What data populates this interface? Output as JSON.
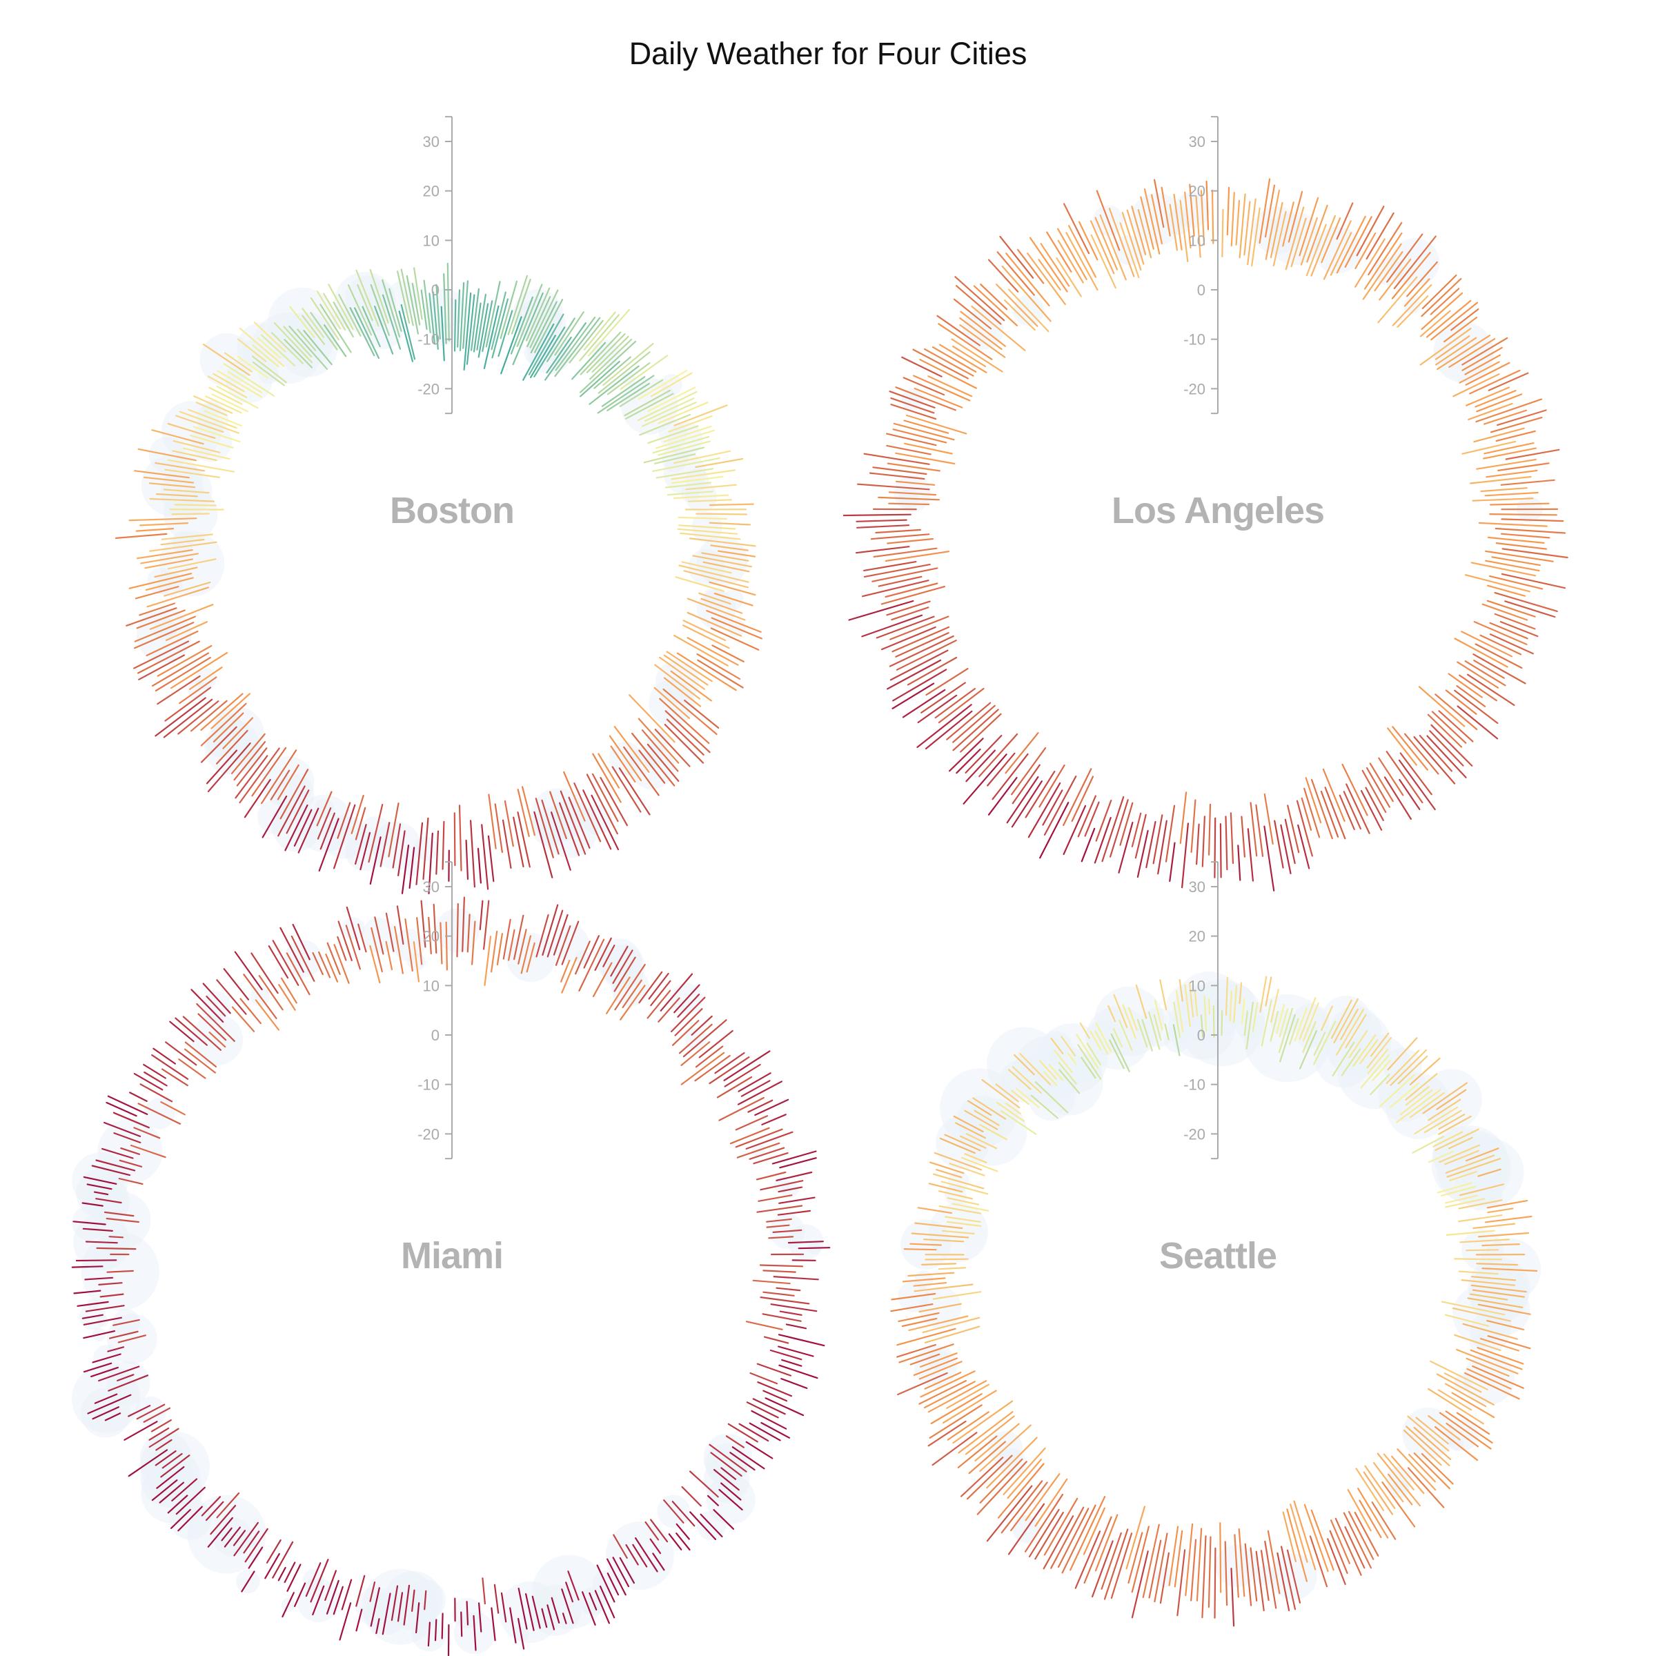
{
  "chart_data": {
    "type": "radial-bar",
    "title": "Daily Weather for Four Cities",
    "y_ticks": [
      30,
      20,
      10,
      0,
      -10,
      -20
    ],
    "y_range": [
      -25,
      35
    ],
    "colors": {
      "cold": "#3b4fa0",
      "cool": "#3aa8a0",
      "mild": "#f7f3a0",
      "warm": "#f79a4e",
      "hot": "#a0103e",
      "precip_bubble": "#dce8f5"
    },
    "cities": [
      {
        "name": "Boston",
        "monthly_temp_ranges": [
          {
            "month": 1,
            "min": -12,
            "max": 0
          },
          {
            "month": 2,
            "min": -10,
            "max": 2
          },
          {
            "month": 3,
            "min": -3,
            "max": 8
          },
          {
            "month": 4,
            "min": 4,
            "max": 14
          },
          {
            "month": 5,
            "min": 10,
            "max": 21
          },
          {
            "month": 6,
            "min": 15,
            "max": 26
          },
          {
            "month": 7,
            "min": 19,
            "max": 29
          },
          {
            "month": 8,
            "min": 18,
            "max": 28
          },
          {
            "month": 9,
            "min": 13,
            "max": 24
          },
          {
            "month": 10,
            "min": 7,
            "max": 17
          },
          {
            "month": 11,
            "min": 2,
            "max": 11
          },
          {
            "month": 12,
            "min": -5,
            "max": 4
          }
        ],
        "monthly_precip_level": [
          0.5,
          0.4,
          0.5,
          0.5,
          0.6,
          0.6,
          0.5,
          0.5,
          0.6,
          0.7,
          0.7,
          0.6
        ]
      },
      {
        "name": "Los Angeles",
        "monthly_temp_ranges": [
          {
            "month": 1,
            "min": 9,
            "max": 20
          },
          {
            "month": 2,
            "min": 10,
            "max": 21
          },
          {
            "month": 3,
            "min": 11,
            "max": 21
          },
          {
            "month": 4,
            "min": 12,
            "max": 23
          },
          {
            "month": 5,
            "min": 14,
            "max": 24
          },
          {
            "month": 6,
            "min": 16,
            "max": 26
          },
          {
            "month": 7,
            "min": 18,
            "max": 28
          },
          {
            "month": 8,
            "min": 19,
            "max": 29
          },
          {
            "month": 9,
            "min": 18,
            "max": 29
          },
          {
            "month": 10,
            "min": 15,
            "max": 26
          },
          {
            "month": 11,
            "min": 12,
            "max": 23
          },
          {
            "month": 12,
            "min": 9,
            "max": 20
          }
        ],
        "monthly_precip_level": [
          0.5,
          0.5,
          0.3,
          0.1,
          0.0,
          0.0,
          0.0,
          0.0,
          0.0,
          0.1,
          0.2,
          0.4
        ]
      },
      {
        "name": "Miami",
        "monthly_temp_ranges": [
          {
            "month": 1,
            "min": 16,
            "max": 24
          },
          {
            "month": 2,
            "min": 17,
            "max": 25
          },
          {
            "month": 3,
            "min": 19,
            "max": 27
          },
          {
            "month": 4,
            "min": 21,
            "max": 28
          },
          {
            "month": 5,
            "min": 23,
            "max": 30
          },
          {
            "month": 6,
            "min": 25,
            "max": 31
          },
          {
            "month": 7,
            "min": 26,
            "max": 32
          },
          {
            "month": 8,
            "min": 26,
            "max": 32
          },
          {
            "month": 9,
            "min": 25,
            "max": 31
          },
          {
            "month": 10,
            "min": 23,
            "max": 29
          },
          {
            "month": 11,
            "min": 20,
            "max": 27
          },
          {
            "month": 12,
            "min": 17,
            "max": 25
          }
        ],
        "monthly_precip_level": [
          0.3,
          0.3,
          0.3,
          0.4,
          0.7,
          0.9,
          0.8,
          0.9,
          1.0,
          0.8,
          0.4,
          0.3
        ]
      },
      {
        "name": "Seattle",
        "monthly_temp_ranges": [
          {
            "month": 1,
            "min": 2,
            "max": 8
          },
          {
            "month": 2,
            "min": 2,
            "max": 10
          },
          {
            "month": 3,
            "min": 4,
            "max": 12
          },
          {
            "month": 4,
            "min": 6,
            "max": 15
          },
          {
            "month": 5,
            "min": 9,
            "max": 19
          },
          {
            "month": 6,
            "min": 11,
            "max": 22
          },
          {
            "month": 7,
            "min": 13,
            "max": 26
          },
          {
            "month": 8,
            "min": 13,
            "max": 26
          },
          {
            "month": 9,
            "min": 11,
            "max": 22
          },
          {
            "month": 10,
            "min": 8,
            "max": 16
          },
          {
            "month": 11,
            "min": 4,
            "max": 11
          },
          {
            "month": 12,
            "min": 2,
            "max": 8
          }
        ],
        "monthly_precip_level": [
          1.0,
          0.8,
          0.8,
          0.6,
          0.4,
          0.3,
          0.1,
          0.1,
          0.3,
          0.7,
          1.0,
          1.0
        ]
      }
    ]
  }
}
